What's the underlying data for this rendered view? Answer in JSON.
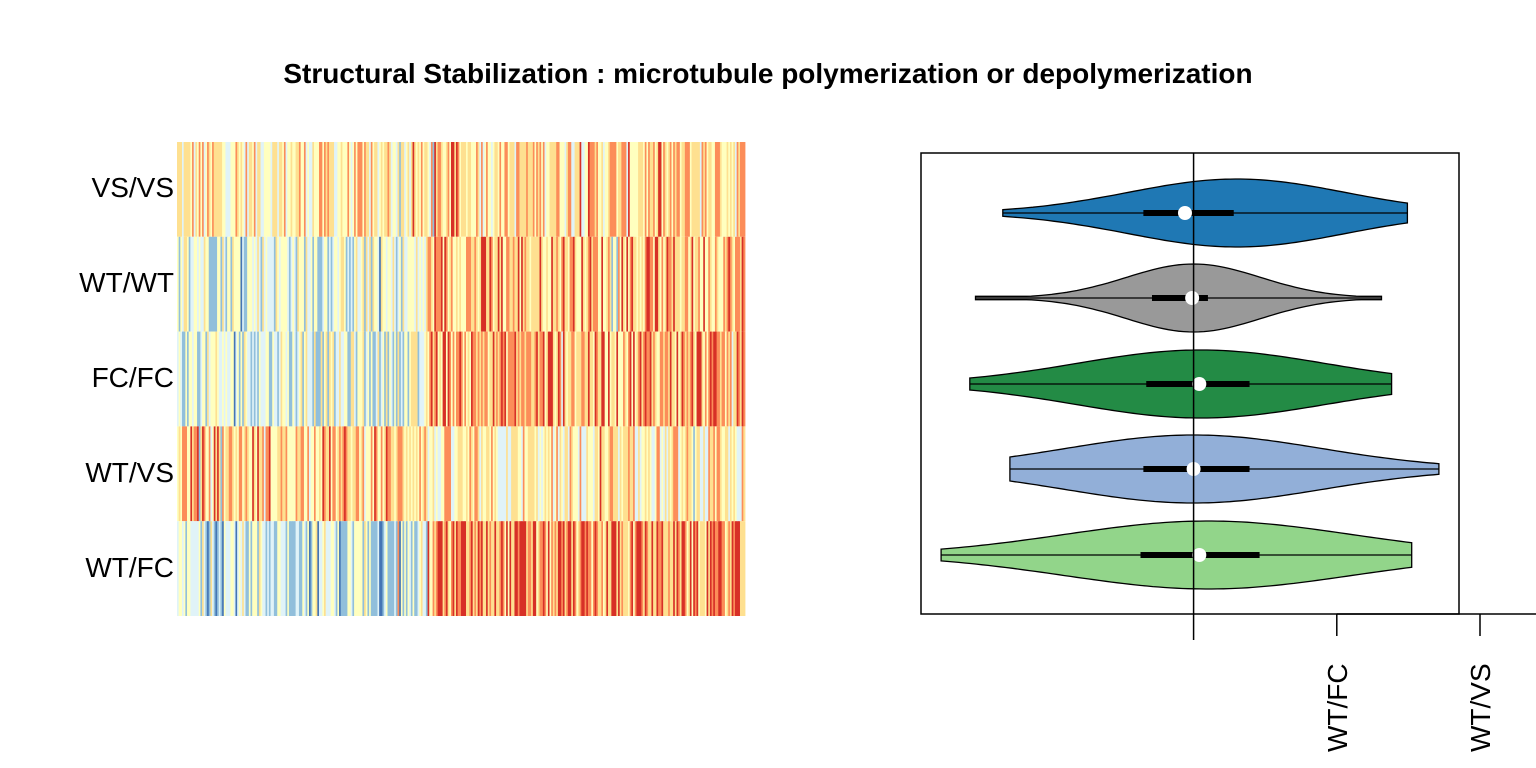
{
  "title": "Structural Stabilization : microtubule polymerization or depolymerization",
  "colors": {
    "heatmap_palette": [
      "#4575b4",
      "#91bfdb",
      "#e0f3f8",
      "#ffffbf",
      "#fee090",
      "#fc8d59",
      "#d73027"
    ],
    "violin_colors": [
      "#1f78b4",
      "#999999",
      "#238b45",
      "#92afd8",
      "#92d58a"
    ]
  },
  "chart_data": [
    {
      "type": "heatmap",
      "rows": [
        "VS/VS",
        "WT/WT",
        "FC/FC",
        "WT/VS",
        "WT/FC"
      ],
      "column_count": 340,
      "column_groups": [
        {
          "from": 0.0,
          "to": 0.44,
          "mean_level_by_row": [
            0.58,
            0.42,
            0.38,
            0.68,
            0.34
          ]
        },
        {
          "from": 0.44,
          "to": 1.0,
          "mean_level_by_row": [
            0.66,
            0.72,
            0.76,
            0.52,
            0.8
          ]
        }
      ],
      "scale": "diverging, blue (low) - yellow (mid) - red (high)"
    },
    {
      "type": "violin",
      "groups": [
        "VS/VS",
        "WT/WT",
        "FC/FC",
        "WT/VS",
        "WT/FC"
      ],
      "orientation": "horizontal",
      "reference_line": 0,
      "xlim": [
        -1.9,
        1.85
      ],
      "series": [
        {
          "min": -1.33,
          "q1": -0.35,
          "median": -0.06,
          "q3": 0.28,
          "max": 1.49,
          "density_peak": 0.3,
          "halfwidth": 34
        },
        {
          "min": -1.52,
          "q1": -0.29,
          "median": -0.01,
          "q3": 0.1,
          "max": 1.31,
          "density_peak": 0.0,
          "halfwidth": 34
        },
        {
          "min": -1.56,
          "q1": -0.33,
          "median": 0.04,
          "q3": 0.39,
          "max": 1.38,
          "density_peak": 0.05,
          "halfwidth": 34
        },
        {
          "min": -1.28,
          "q1": -0.35,
          "median": 0.0,
          "q3": 0.39,
          "max": 1.71,
          "density_peak": 0.0,
          "halfwidth": 34
        },
        {
          "min": -1.76,
          "q1": -0.37,
          "median": 0.04,
          "q3": 0.46,
          "max": 1.52,
          "density_peak": 0.1,
          "halfwidth": 34
        }
      ],
      "secondary_axis": {
        "tick_labels": [
          "WT/FC",
          "WT/VS"
        ],
        "tick_values": [
          1.0,
          2.0
        ]
      }
    }
  ]
}
